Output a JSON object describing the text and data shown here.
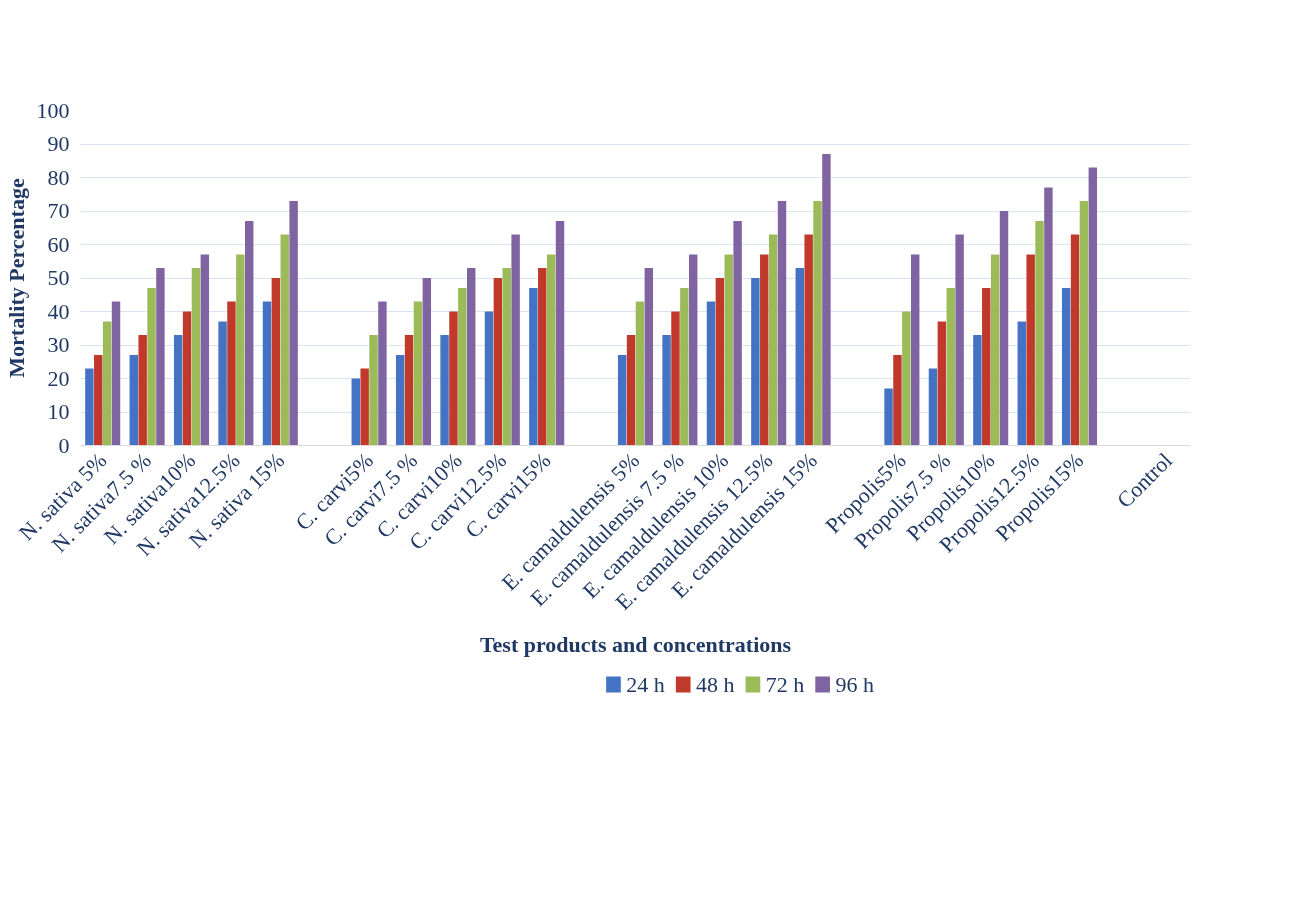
{
  "chart_data": {
    "type": "bar",
    "xlabel": "Test products and concentrations",
    "ylabel": "Mortality Percentage",
    "categories": [
      "N. sativa 5%",
      "N. sativa7.5 %",
      "N. sativa10%",
      "N. sativa12.5%",
      "N. sativa 15%",
      null,
      "C. carvi5%",
      "C. carvi7.5 %",
      "C. carvi10%",
      "C. carvi12.5%",
      "C. carvi15%",
      null,
      "E. camaldulensis 5%",
      "E. camaldulensis 7.5 %",
      "E. camaldulensis 10%",
      "E. camaldulensis 12.5%",
      "E. camaldulensis 15%",
      null,
      "Propolis5%",
      "Propolis7.5 %",
      "Propolis10%",
      "Propolis12.5%",
      "Propolis15%",
      null,
      "Control"
    ],
    "series": [
      {
        "name": "24 h",
        "color": "#4472c4",
        "values": [
          23,
          27,
          33,
          37,
          43,
          null,
          20,
          27,
          33,
          40,
          47,
          null,
          27,
          33,
          43,
          50,
          53,
          null,
          17,
          23,
          33,
          37,
          47,
          null,
          0
        ]
      },
      {
        "name": "48 h",
        "color": "#c0392b",
        "values": [
          27,
          33,
          40,
          43,
          50,
          null,
          23,
          33,
          40,
          50,
          53,
          null,
          33,
          40,
          50,
          57,
          63,
          null,
          27,
          37,
          47,
          57,
          63,
          null,
          0
        ]
      },
      {
        "name": "72 h",
        "color": "#9bbb59",
        "values": [
          37,
          47,
          53,
          57,
          63,
          null,
          33,
          43,
          47,
          53,
          57,
          null,
          43,
          47,
          57,
          63,
          73,
          null,
          40,
          47,
          57,
          67,
          73,
          null,
          0
        ]
      },
      {
        "name": "96 h",
        "color": "#8064a2",
        "values": [
          43,
          53,
          57,
          67,
          73,
          null,
          43,
          50,
          53,
          63,
          67,
          null,
          53,
          57,
          67,
          73,
          87,
          null,
          57,
          63,
          70,
          77,
          83,
          null,
          0
        ]
      }
    ],
    "ylim": [
      0,
      100
    ],
    "yticks": [
      0,
      10,
      20,
      30,
      40,
      50,
      60,
      70,
      80,
      90,
      100
    ],
    "grid": "y",
    "legend": "bottom"
  }
}
